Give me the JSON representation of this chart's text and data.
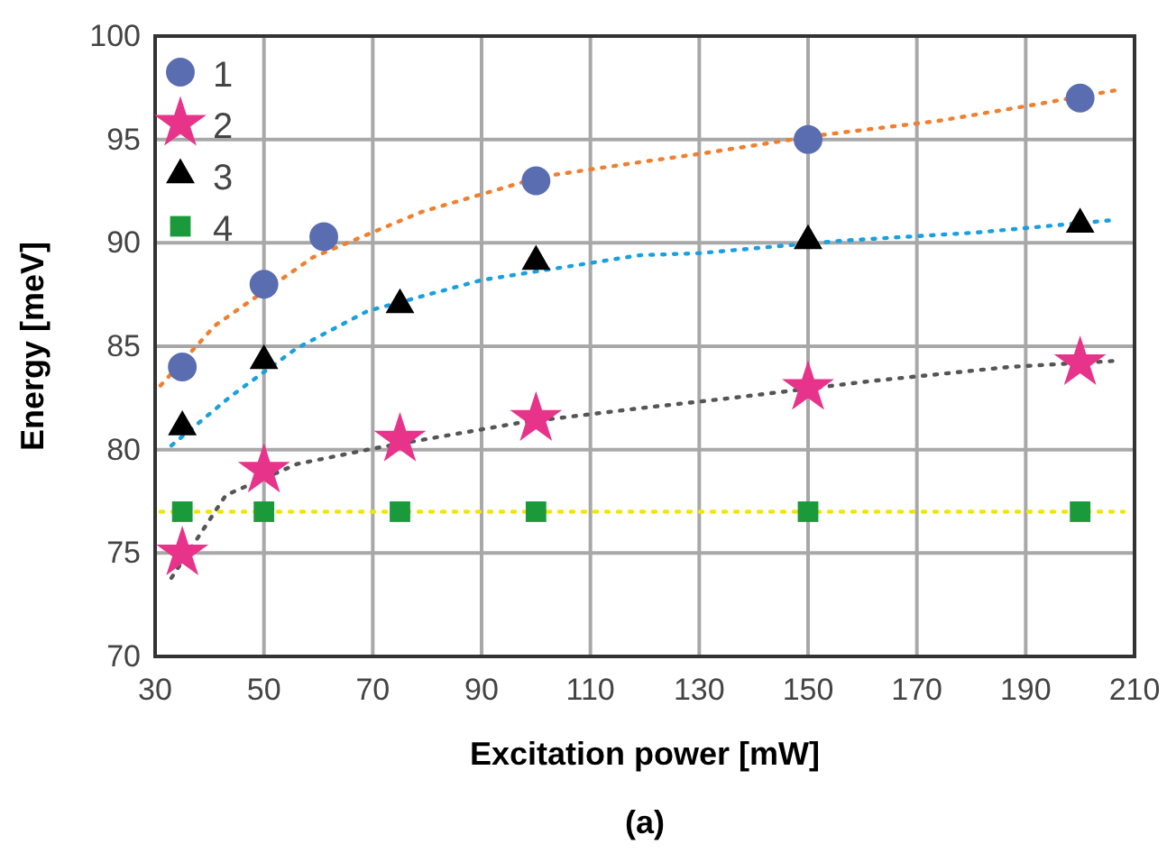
{
  "chart_data": {
    "type": "scatter",
    "xlabel": "Excitation power [mW]",
    "ylabel": "Energy [meV]",
    "annotations": [
      "(a)"
    ],
    "xlim": [
      30,
      210
    ],
    "xticks": [
      30,
      50,
      70,
      90,
      110,
      130,
      150,
      170,
      190,
      210
    ],
    "ylim": [
      70,
      100
    ],
    "yticks": [
      70,
      75,
      80,
      85,
      90,
      95,
      100
    ],
    "grid": true,
    "legend": "top left",
    "series": [
      {
        "name": "1",
        "color": "#5a6db0",
        "marker": "circle",
        "x": [
          35,
          50,
          61,
          100,
          150,
          200
        ],
        "values": [
          84.0,
          88.0,
          90.3,
          93.0,
          95.0,
          97.0
        ]
      },
      {
        "name": "2",
        "color": "#e8338a",
        "marker": "star",
        "x": [
          35,
          50,
          75,
          100,
          150,
          200
        ],
        "values": [
          75.0,
          79.0,
          80.5,
          81.5,
          83.0,
          84.2
        ]
      },
      {
        "name": "3",
        "color": "#000000",
        "marker": "triangle",
        "x": [
          35,
          50,
          75,
          100,
          150,
          200
        ],
        "values": [
          81.1,
          84.3,
          87.0,
          89.1,
          90.1,
          90.9
        ]
      },
      {
        "name": "4",
        "color": "#1a9a3a",
        "marker": "square",
        "x": [
          35,
          50,
          75,
          100,
          150,
          200
        ],
        "values": [
          77.0,
          77.0,
          77.0,
          77.0,
          77.0,
          77.0
        ]
      },
      {
        "type": "line",
        "line_style": "dotted",
        "color": "#f08030",
        "x": [
          31,
          41,
          59,
          79,
          101,
          119,
          130,
          152,
          174,
          192,
          207
        ],
        "values": [
          83.1,
          86.0,
          89.3,
          91.5,
          93.2,
          93.9,
          94.3,
          95.2,
          95.9,
          96.7,
          97.4
        ]
      },
      {
        "type": "line",
        "line_style": "dotted",
        "color": "#555555",
        "x": [
          33,
          43,
          56,
          71,
          97,
          119,
          136,
          161,
          187,
          207
        ],
        "values": [
          73.8,
          77.8,
          79.3,
          80.1,
          81.3,
          82.0,
          82.5,
          83.3,
          84.0,
          84.3
        ]
      },
      {
        "type": "line",
        "line_style": "dotted",
        "color": "#1aa0e0",
        "x": [
          33,
          44,
          56,
          69,
          90,
          119,
          130,
          156,
          181,
          206
        ],
        "values": [
          80.2,
          82.6,
          84.9,
          86.7,
          88.2,
          89.4,
          89.5,
          90.1,
          90.5,
          91.1
        ]
      },
      {
        "type": "line",
        "line_style": "dotted",
        "color": "#f2e600",
        "x": [
          31,
          208
        ],
        "values": [
          77.0,
          77.0
        ]
      }
    ]
  }
}
